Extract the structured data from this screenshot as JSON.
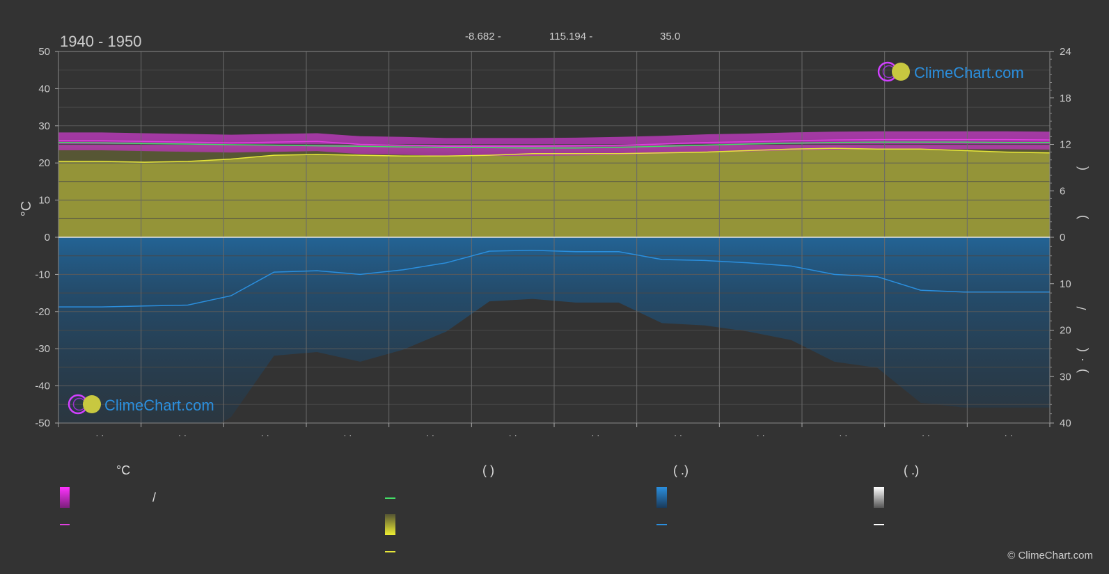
{
  "chart_data": {
    "type": "area",
    "title": "1940 - 1950",
    "header": {
      "lat": "-8.682 -",
      "lon": "115.194 -",
      "elevation": "35.0"
    },
    "left_axis": {
      "label": "°C",
      "range": [
        -50,
        50
      ],
      "ticks": [
        "50",
        "40",
        "30",
        "20",
        "10",
        "0",
        "-10",
        "-20",
        "-30",
        "-40",
        "-50"
      ]
    },
    "right_axis_top": {
      "range": [
        0,
        24
      ],
      "ticks": [
        "24",
        "18",
        "12",
        "6",
        "0"
      ],
      "label_glyphs": [
        "(",
        ")"
      ]
    },
    "right_axis_bottom": {
      "range": [
        0,
        40
      ],
      "ticks": [
        "10",
        "20",
        "30",
        "40"
      ],
      "label_glyphs": [
        "/",
        "(",
        "·",
        ")"
      ]
    },
    "x_tick_labels": [
      "· ·",
      "· ·",
      "· ·",
      "· ·",
      "· ·",
      "· ·",
      "· ·",
      "· ·",
      "· ·",
      "· ·",
      "· ·",
      "· ·"
    ],
    "grid": true,
    "series": [
      {
        "key": "temp_max",
        "color": "#e040e0",
        "values": [
          26.0,
          26.0,
          25.8,
          25.6,
          25.4,
          25.6,
          25.8,
          25.0,
          24.8,
          24.5,
          24.5,
          24.5,
          24.6,
          24.8,
          25.1,
          25.5,
          25.7,
          26.0,
          26.2,
          26.3,
          26.3,
          26.3,
          26.3,
          26.2
        ]
      },
      {
        "key": "temp_mean",
        "color": "#44dd66",
        "values": [
          25.5,
          25.4,
          25.2,
          25.1,
          24.9,
          24.8,
          24.6,
          24.5,
          24.3,
          24.2,
          24.1,
          24.0,
          24.0,
          24.2,
          24.5,
          24.8,
          25.1,
          25.3,
          25.5,
          25.6,
          25.6,
          25.6,
          25.5,
          25.5
        ]
      },
      {
        "key": "sunshine_hours",
        "color": "#e8e83a",
        "values": [
          9.8,
          9.8,
          9.7,
          9.8,
          10.1,
          10.6,
          10.7,
          10.6,
          10.5,
          10.5,
          10.6,
          10.8,
          10.8,
          10.8,
          10.9,
          11.0,
          11.2,
          11.4,
          11.5,
          11.4,
          11.4,
          11.2,
          11.0,
          10.9
        ]
      },
      {
        "key": "precipitation",
        "color": "#2b8fde",
        "values": [
          15.0,
          15.0,
          14.8,
          14.6,
          12.6,
          7.5,
          7.2,
          8.0,
          7.0,
          5.5,
          3.0,
          2.8,
          3.1,
          3.1,
          4.8,
          5.0,
          5.5,
          6.2,
          8.0,
          8.5,
          11.4,
          11.8,
          11.8,
          11.8
        ]
      }
    ],
    "legend": {
      "headers": [
        "°C",
        "(          )",
        "(    .)",
        "(    .)"
      ],
      "sep_glyph": "/"
    },
    "colors": {
      "background": "#333333",
      "temp_band": "#d43fd4",
      "sunshine_band": "#a6a63a",
      "precip_band": "#1f5f8c",
      "grid": "#5a5a5a",
      "axis_text": "#cccccc",
      "brand": "#2b8fde"
    }
  },
  "brand": {
    "name": "ClimeChart.com",
    "copyright": "© ClimeChart.com"
  }
}
